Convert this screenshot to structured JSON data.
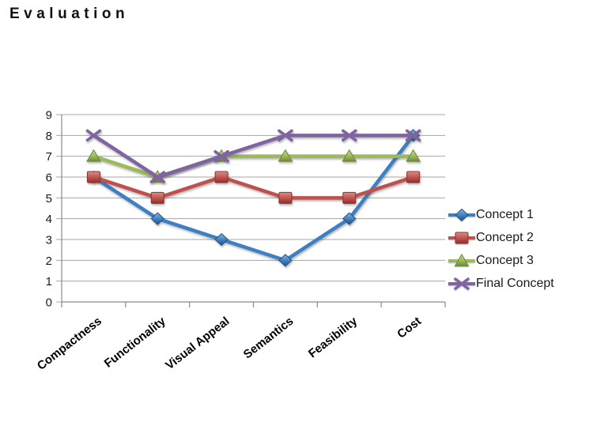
{
  "title": "Evaluation",
  "chart_data": {
    "type": "line",
    "title": "Evaluation",
    "categories": [
      "Compactness",
      "Functionality",
      "Visual Appeal",
      "Semantics",
      "Feasibility",
      "Cost"
    ],
    "series": [
      {
        "name": "Concept 1",
        "marker": "diamond",
        "color": "#3E7EC2",
        "light": "#8AB4E0",
        "dark": "#24537F",
        "values": [
          6,
          4,
          3,
          2,
          4,
          8
        ]
      },
      {
        "name": "Concept 2",
        "marker": "square",
        "color": "#C0504D",
        "light": "#DA8D89",
        "dark": "#8B3330",
        "values": [
          6,
          5,
          6,
          5,
          5,
          6
        ]
      },
      {
        "name": "Concept 3",
        "marker": "triangle",
        "color": "#9BBB59",
        "light": "#C3D598",
        "dark": "#6E883C",
        "values": [
          7,
          6,
          7,
          7,
          7,
          7
        ]
      },
      {
        "name": "Final Concept",
        "marker": "x",
        "color": "#8064A2",
        "light": "#AC9AC6",
        "dark": "#57416F",
        "values": [
          8,
          6,
          7,
          8,
          8,
          8
        ]
      }
    ],
    "ylim": [
      0,
      9
    ],
    "yticks": [
      0,
      1,
      2,
      3,
      4,
      5,
      6,
      7,
      8,
      9
    ],
    "xlabel": "",
    "ylabel": "",
    "grid": true,
    "legend_position": "right"
  },
  "colors": {
    "gridline": "#A6A6A6",
    "axis": "#8C8C8C",
    "tick_text": "#1A1A1A",
    "category_text": "#000000"
  }
}
